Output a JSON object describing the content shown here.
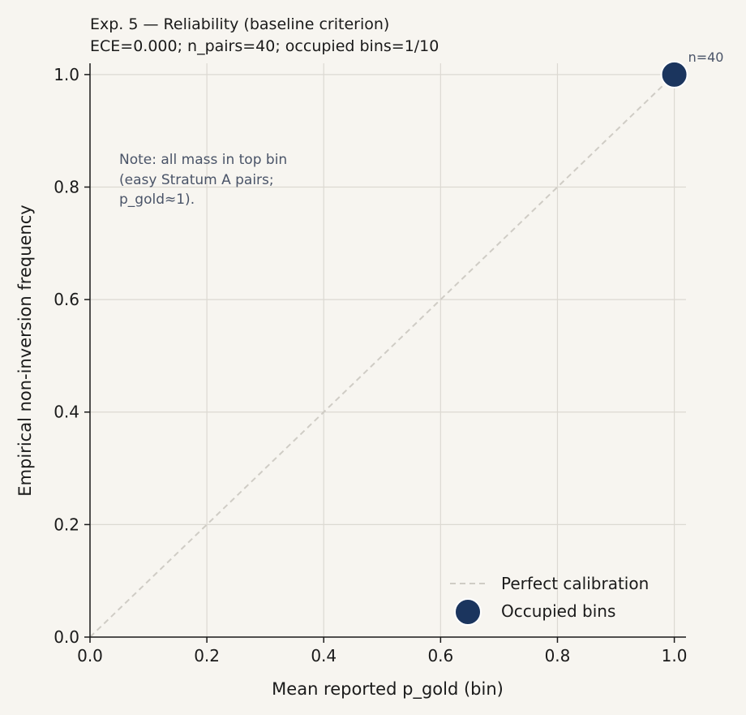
{
  "chart_data": {
    "type": "scatter",
    "title_lines": [
      "Exp. 5 — Reliability (baseline criterion)",
      "ECE=0.000; n_pairs=40; occupied bins=1/10"
    ],
    "xlabel": "Mean reported p_gold (bin)",
    "ylabel": "Empirical non-inversion frequency",
    "xlim": [
      0.0,
      1.02
    ],
    "ylim": [
      0.0,
      1.02
    ],
    "x_ticks": [
      0.0,
      0.2,
      0.4,
      0.6,
      0.8,
      1.0
    ],
    "y_ticks": [
      0.0,
      0.2,
      0.4,
      0.6,
      0.8,
      1.0
    ],
    "x_tick_labels": [
      "0.0",
      "0.2",
      "0.4",
      "0.6",
      "0.8",
      "1.0"
    ],
    "y_tick_labels": [
      "0.0",
      "0.2",
      "0.4",
      "0.6",
      "0.8",
      "1.0"
    ],
    "grid": true,
    "series": [
      {
        "name": "Perfect calibration",
        "kind": "line",
        "style": "dashed",
        "color": "#cfccc5",
        "x": [
          0.0,
          1.0
        ],
        "y": [
          0.0,
          1.0
        ]
      },
      {
        "name": "Occupied bins",
        "kind": "scatter",
        "color": "#1b355e",
        "points": [
          {
            "x": 1.0,
            "y": 1.0,
            "label": "n=40"
          }
        ]
      }
    ],
    "note_lines": [
      "Note: all mass in top bin",
      "(easy Stratum A pairs;",
      "p_gold≈1)."
    ],
    "legend_position": "lower-right",
    "colors": {
      "background": "#f7f5f0",
      "grid": "#dcd9d2",
      "axis": "#1a1a1a",
      "note": "#4a5468"
    }
  }
}
